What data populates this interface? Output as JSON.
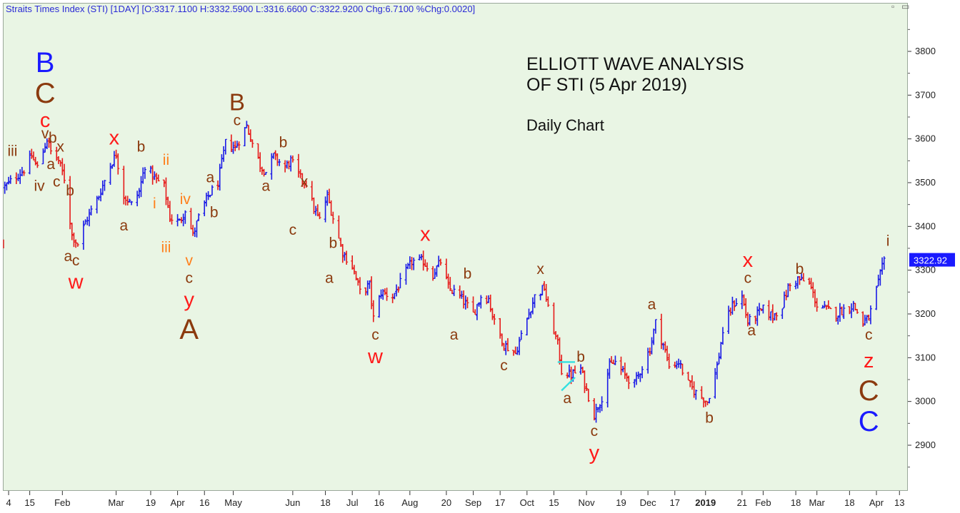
{
  "header": {
    "text": "Straits Times Index (STI) [1DAY] [O:3317.1100 H:3332.5900 L:3316.6600 C:3322.9200 Chg:6.7100 %Chg:0.0020]"
  },
  "annotations": {
    "title_line1": "ELLIOTT WAVE ANALYSIS",
    "title_line2": "OF STI (5 Apr 2019)",
    "subtitle": "Daily Chart"
  },
  "price_tag": {
    "value": "3322.92",
    "color": "#1a1aff"
  },
  "colors": {
    "up_bar": "#1a1ae6",
    "down_bar": "#e61a1a",
    "background": "#e9f5e4",
    "wave_brown": "#8b3a0e",
    "wave_red": "#ff1a1a",
    "wave_blue": "#1a1aff",
    "wave_orange": "#ff7f1a",
    "trendline": "#33e0e0"
  },
  "chart_data": {
    "type": "ohlc",
    "y_axis_position": "right",
    "ylim": [
      2810,
      3880
    ],
    "yticks": [
      2900,
      3000,
      3100,
      3200,
      3300,
      3400,
      3500,
      3600,
      3700,
      3800
    ],
    "xlim": [
      "2018-01-01",
      "2019-04-17"
    ],
    "xticks": [
      {
        "date": "2018-01-04",
        "label": "4"
      },
      {
        "date": "2018-01-15",
        "label": "15"
      },
      {
        "date": "2018-02-01",
        "label": "Feb"
      },
      {
        "date": "2018-03-01",
        "label": "Mar"
      },
      {
        "date": "2018-03-19",
        "label": "19"
      },
      {
        "date": "2018-04-02",
        "label": "Apr"
      },
      {
        "date": "2018-04-16",
        "label": "16"
      },
      {
        "date": "2018-05-01",
        "label": "May"
      },
      {
        "date": "2018-06-01",
        "label": "Jun"
      },
      {
        "date": "2018-06-18",
        "label": "18"
      },
      {
        "date": "2018-07-02",
        "label": "Jul"
      },
      {
        "date": "2018-07-16",
        "label": "16"
      },
      {
        "date": "2018-08-01",
        "label": "Aug"
      },
      {
        "date": "2018-08-20",
        "label": "20"
      },
      {
        "date": "2018-09-03",
        "label": "Sep"
      },
      {
        "date": "2018-09-17",
        "label": "17"
      },
      {
        "date": "2018-10-01",
        "label": "Oct"
      },
      {
        "date": "2018-10-15",
        "label": "15"
      },
      {
        "date": "2018-11-01",
        "label": "Nov"
      },
      {
        "date": "2018-11-19",
        "label": "19"
      },
      {
        "date": "2018-12-03",
        "label": "Dec"
      },
      {
        "date": "2018-12-17",
        "label": "17"
      },
      {
        "date": "2019-01-02",
        "label": "2019",
        "bold": true
      },
      {
        "date": "2019-01-21",
        "label": "21"
      },
      {
        "date": "2019-02-01",
        "label": "Feb"
      },
      {
        "date": "2019-02-18",
        "label": "18"
      },
      {
        "date": "2019-03-01",
        "label": "Mar"
      },
      {
        "date": "2019-03-18",
        "label": "18"
      },
      {
        "date": "2019-04-01",
        "label": "Apr"
      },
      {
        "date": "2019-04-13",
        "label": "13"
      }
    ],
    "price_path": [
      [
        "2018-01-02",
        3490
      ],
      [
        "2018-01-08",
        3515
      ],
      [
        "2018-01-12",
        3530
      ],
      [
        "2018-01-16",
        3560
      ],
      [
        "2018-01-19",
        3535
      ],
      [
        "2018-01-24",
        3600
      ],
      [
        "2018-01-26",
        3570
      ],
      [
        "2018-01-30",
        3550
      ],
      [
        "2018-02-02",
        3510
      ],
      [
        "2018-02-06",
        3380
      ],
      [
        "2018-02-09",
        3360
      ],
      [
        "2018-02-13",
        3410
      ],
      [
        "2018-02-20",
        3470
      ],
      [
        "2018-02-26",
        3540
      ],
      [
        "2018-03-01",
        3565
      ],
      [
        "2018-03-05",
        3470
      ],
      [
        "2018-03-09",
        3450
      ],
      [
        "2018-03-13",
        3480
      ],
      [
        "2018-03-16",
        3540
      ],
      [
        "2018-03-21",
        3510
      ],
      [
        "2018-03-26",
        3490
      ],
      [
        "2018-03-29",
        3420
      ],
      [
        "2018-04-03",
        3410
      ],
      [
        "2018-04-06",
        3440
      ],
      [
        "2018-04-10",
        3380
      ],
      [
        "2018-04-13",
        3420
      ],
      [
        "2018-04-18",
        3470
      ],
      [
        "2018-04-23",
        3500
      ],
      [
        "2018-04-27",
        3590
      ],
      [
        "2018-05-02",
        3580
      ],
      [
        "2018-05-08",
        3630
      ],
      [
        "2018-05-11",
        3590
      ],
      [
        "2018-05-15",
        3540
      ],
      [
        "2018-05-18",
        3525
      ],
      [
        "2018-05-22",
        3560
      ],
      [
        "2018-05-28",
        3535
      ],
      [
        "2018-05-31",
        3550
      ],
      [
        "2018-06-05",
        3510
      ],
      [
        "2018-06-08",
        3500
      ],
      [
        "2018-06-12",
        3440
      ],
      [
        "2018-06-15",
        3415
      ],
      [
        "2018-06-19",
        3470
      ],
      [
        "2018-06-22",
        3420
      ],
      [
        "2018-06-27",
        3340
      ],
      [
        "2018-07-02",
        3310
      ],
      [
        "2018-07-06",
        3250
      ],
      [
        "2018-07-11",
        3265
      ],
      [
        "2018-07-13",
        3190
      ],
      [
        "2018-07-17",
        3250
      ],
      [
        "2018-07-23",
        3240
      ],
      [
        "2018-07-27",
        3270
      ],
      [
        "2018-08-02",
        3320
      ],
      [
        "2018-08-08",
        3320
      ],
      [
        "2018-08-13",
        3290
      ],
      [
        "2018-08-17",
        3320
      ],
      [
        "2018-08-21",
        3260
      ],
      [
        "2018-08-27",
        3240
      ],
      [
        "2018-09-03",
        3200
      ],
      [
        "2018-09-07",
        3240
      ],
      [
        "2018-09-11",
        3235
      ],
      [
        "2018-09-14",
        3180
      ],
      [
        "2018-09-19",
        3130
      ],
      [
        "2018-09-25",
        3110
      ],
      [
        "2018-10-01",
        3190
      ],
      [
        "2018-10-05",
        3240
      ],
      [
        "2018-10-10",
        3260
      ],
      [
        "2018-10-12",
        3210
      ],
      [
        "2018-10-17",
        3130
      ],
      [
        "2018-10-19",
        3070
      ],
      [
        "2018-10-24",
        3060
      ],
      [
        "2018-10-29",
        3075
      ],
      [
        "2018-10-31",
        3040
      ],
      [
        "2018-11-05",
        2970
      ],
      [
        "2018-11-09",
        3010
      ],
      [
        "2018-11-13",
        3080
      ],
      [
        "2018-11-16",
        3090
      ],
      [
        "2018-11-21",
        3060
      ],
      [
        "2018-11-26",
        3040
      ],
      [
        "2018-11-30",
        3080
      ],
      [
        "2018-12-04",
        3120
      ],
      [
        "2018-12-07",
        3180
      ],
      [
        "2018-12-11",
        3130
      ],
      [
        "2018-12-14",
        3080
      ],
      [
        "2018-12-19",
        3090
      ],
      [
        "2018-12-24",
        3040
      ],
      [
        "2018-12-28",
        3020
      ],
      [
        "2019-01-03",
        3000
      ],
      [
        "2019-01-08",
        3080
      ],
      [
        "2019-01-11",
        3160
      ],
      [
        "2019-01-16",
        3220
      ],
      [
        "2019-01-21",
        3240
      ],
      [
        "2019-01-24",
        3180
      ],
      [
        "2019-01-29",
        3200
      ],
      [
        "2019-02-01",
        3210
      ],
      [
        "2019-02-06",
        3195
      ],
      [
        "2019-02-11",
        3220
      ],
      [
        "2019-02-14",
        3260
      ],
      [
        "2019-02-19",
        3280
      ],
      [
        "2019-02-25",
        3270
      ],
      [
        "2019-03-01",
        3220
      ],
      [
        "2019-03-06",
        3210
      ],
      [
        "2019-03-11",
        3200
      ],
      [
        "2019-03-15",
        3210
      ],
      [
        "2019-03-20",
        3220
      ],
      [
        "2019-03-25",
        3180
      ],
      [
        "2019-03-28",
        3190
      ],
      [
        "2019-04-02",
        3270
      ],
      [
        "2019-04-05",
        3322.92
      ]
    ],
    "trendlines": [
      {
        "points": [
          [
            "2018-10-17",
            3090
          ],
          [
            "2018-10-26",
            3090
          ]
        ]
      },
      {
        "points": [
          [
            "2018-10-19",
            3025
          ],
          [
            "2018-10-26",
            3055
          ]
        ]
      }
    ],
    "wave_labels": [
      {
        "text": "B",
        "date": "2018-01-23",
        "price": 3770,
        "color": "blue",
        "size": "xl"
      },
      {
        "text": "C",
        "date": "2018-01-23",
        "price": 3700,
        "color": "brown",
        "size": "xl"
      },
      {
        "text": "c",
        "date": "2018-01-23",
        "price": 3640,
        "color": "red",
        "size": "m"
      },
      {
        "text": "v",
        "date": "2018-01-23",
        "price": 3610,
        "color": "brown",
        "size": "s"
      },
      {
        "text": "iii",
        "date": "2018-01-06",
        "price": 3570,
        "color": "brown",
        "size": "s"
      },
      {
        "text": "iv",
        "date": "2018-01-20",
        "price": 3490,
        "color": "brown",
        "size": "s"
      },
      {
        "text": "b",
        "date": "2018-01-27",
        "price": 3600,
        "color": "brown",
        "size": "s"
      },
      {
        "text": "x",
        "date": "2018-01-31",
        "price": 3580,
        "color": "brown",
        "size": "s"
      },
      {
        "text": "a",
        "date": "2018-01-26",
        "price": 3540,
        "color": "brown",
        "size": "s"
      },
      {
        "text": "c",
        "date": "2018-01-29",
        "price": 3500,
        "color": "brown",
        "size": "s"
      },
      {
        "text": "b",
        "date": "2018-02-05",
        "price": 3480,
        "color": "brown",
        "size": "s"
      },
      {
        "text": "a",
        "date": "2018-02-04",
        "price": 3330,
        "color": "brown",
        "size": "s"
      },
      {
        "text": "c",
        "date": "2018-02-08",
        "price": 3320,
        "color": "brown",
        "size": "s"
      },
      {
        "text": "w",
        "date": "2018-02-08",
        "price": 3270,
        "color": "red",
        "size": "m"
      },
      {
        "text": "x",
        "date": "2018-02-28",
        "price": 3600,
        "color": "red",
        "size": "m"
      },
      {
        "text": "a",
        "date": "2018-03-05",
        "price": 3400,
        "color": "brown",
        "size": "s"
      },
      {
        "text": "b",
        "date": "2018-03-14",
        "price": 3580,
        "color": "brown",
        "size": "s"
      },
      {
        "text": "ii",
        "date": "2018-03-27",
        "price": 3550,
        "color": "orange",
        "size": "s"
      },
      {
        "text": "i",
        "date": "2018-03-21",
        "price": 3450,
        "color": "orange",
        "size": "s"
      },
      {
        "text": "iii",
        "date": "2018-03-27",
        "price": 3350,
        "color": "orange",
        "size": "s"
      },
      {
        "text": "iv",
        "date": "2018-04-06",
        "price": 3460,
        "color": "orange",
        "size": "s"
      },
      {
        "text": "v",
        "date": "2018-04-08",
        "price": 3320,
        "color": "orange",
        "size": "s"
      },
      {
        "text": "a",
        "date": "2018-04-19",
        "price": 3510,
        "color": "brown",
        "size": "s"
      },
      {
        "text": "b",
        "date": "2018-04-21",
        "price": 3430,
        "color": "brown",
        "size": "s"
      },
      {
        "text": "c",
        "date": "2018-04-08",
        "price": 3280,
        "color": "brown",
        "size": "s"
      },
      {
        "text": "y",
        "date": "2018-04-08",
        "price": 3230,
        "color": "red",
        "size": "m"
      },
      {
        "text": "A",
        "date": "2018-04-08",
        "price": 3160,
        "color": "brown",
        "size": "xl"
      },
      {
        "text": "B",
        "date": "2018-05-03",
        "price": 3680,
        "color": "brown",
        "size": "l"
      },
      {
        "text": "c",
        "date": "2018-05-03",
        "price": 3640,
        "color": "brown",
        "size": "s"
      },
      {
        "text": "a",
        "date": "2018-05-18",
        "price": 3490,
        "color": "brown",
        "size": "s"
      },
      {
        "text": "b",
        "date": "2018-05-27",
        "price": 3590,
        "color": "brown",
        "size": "s"
      },
      {
        "text": "x",
        "date": "2018-06-07",
        "price": 3500,
        "color": "brown",
        "size": "s"
      },
      {
        "text": "c",
        "date": "2018-06-01",
        "price": 3390,
        "color": "brown",
        "size": "s"
      },
      {
        "text": "b",
        "date": "2018-06-22",
        "price": 3360,
        "color": "brown",
        "size": "s"
      },
      {
        "text": "a",
        "date": "2018-06-20",
        "price": 3280,
        "color": "brown",
        "size": "s"
      },
      {
        "text": "c",
        "date": "2018-07-14",
        "price": 3150,
        "color": "brown",
        "size": "s"
      },
      {
        "text": "w",
        "date": "2018-07-14",
        "price": 3100,
        "color": "red",
        "size": "m"
      },
      {
        "text": "x",
        "date": "2018-08-09",
        "price": 3380,
        "color": "red",
        "size": "m"
      },
      {
        "text": "b",
        "date": "2018-08-31",
        "price": 3290,
        "color": "brown",
        "size": "s"
      },
      {
        "text": "a",
        "date": "2018-08-24",
        "price": 3150,
        "color": "brown",
        "size": "s"
      },
      {
        "text": "c",
        "date": "2018-09-19",
        "price": 3080,
        "color": "brown",
        "size": "s"
      },
      {
        "text": "x",
        "date": "2018-10-08",
        "price": 3300,
        "color": "brown",
        "size": "s"
      },
      {
        "text": "b",
        "date": "2018-10-29",
        "price": 3100,
        "color": "brown",
        "size": "s"
      },
      {
        "text": "a",
        "date": "2018-10-22",
        "price": 3005,
        "color": "brown",
        "size": "s"
      },
      {
        "text": "c",
        "date": "2018-11-05",
        "price": 2930,
        "color": "brown",
        "size": "s"
      },
      {
        "text": "y",
        "date": "2018-11-05",
        "price": 2880,
        "color": "red",
        "size": "m"
      },
      {
        "text": "a",
        "date": "2018-12-05",
        "price": 3220,
        "color": "brown",
        "size": "s"
      },
      {
        "text": "b",
        "date": "2019-01-04",
        "price": 2960,
        "color": "brown",
        "size": "s"
      },
      {
        "text": "x",
        "date": "2019-01-24",
        "price": 3320,
        "color": "red",
        "size": "m"
      },
      {
        "text": "c",
        "date": "2019-01-24",
        "price": 3280,
        "color": "brown",
        "size": "s"
      },
      {
        "text": "a",
        "date": "2019-01-26",
        "price": 3160,
        "color": "brown",
        "size": "s"
      },
      {
        "text": "b",
        "date": "2019-02-20",
        "price": 3300,
        "color": "brown",
        "size": "s"
      },
      {
        "text": "i",
        "date": "2019-04-07",
        "price": 3365,
        "color": "brown",
        "size": "s"
      },
      {
        "text": "c",
        "date": "2019-03-28",
        "price": 3150,
        "color": "brown",
        "size": "s"
      },
      {
        "text": "z",
        "date": "2019-03-28",
        "price": 3090,
        "color": "red",
        "size": "m"
      },
      {
        "text": "C",
        "date": "2019-03-28",
        "price": 3020,
        "color": "brown",
        "size": "xl"
      },
      {
        "text": "C",
        "date": "2019-03-28",
        "price": 2950,
        "color": "blue",
        "size": "xl"
      }
    ]
  }
}
